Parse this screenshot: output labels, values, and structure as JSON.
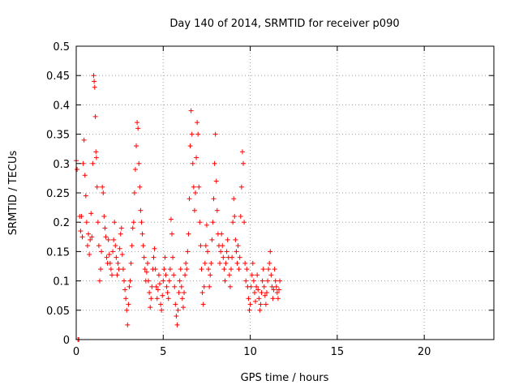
{
  "chart_data": {
    "type": "scatter",
    "title": "Day 140 of 2014, SRMTID for receiver p090",
    "xlabel": "GPS time / hours",
    "ylabel": "SRMTID / TECUs",
    "xlim": [
      0,
      24
    ],
    "ylim": [
      0,
      0.5
    ],
    "grid": true,
    "x_ticks": [
      0,
      5,
      10,
      15,
      20
    ],
    "x_tick_labels": [
      "0",
      "5",
      "10",
      "15",
      "20"
    ],
    "y_ticks": [
      0,
      0.05,
      0.1,
      0.15,
      0.2,
      0.25,
      0.3,
      0.35,
      0.4,
      0.45,
      0.5
    ],
    "y_tick_labels": [
      "0",
      "0.05",
      "0.1",
      "0.15",
      "0.2",
      "0.25",
      "0.3",
      "0.35",
      "0.4",
      "0.45",
      "0.5"
    ],
    "marker": "+",
    "series": [
      {
        "name": "SRMTID",
        "color": "#ff0000",
        "points": [
          [
            0.0,
            0.305
          ],
          [
            0.05,
            0.29
          ],
          [
            0.1,
            0.0
          ],
          [
            0.15,
            0.0
          ],
          [
            0.2,
            0.21
          ],
          [
            0.25,
            0.185
          ],
          [
            0.3,
            0.21
          ],
          [
            0.35,
            0.175
          ],
          [
            0.4,
            0.3
          ],
          [
            0.45,
            0.34
          ],
          [
            0.5,
            0.28
          ],
          [
            0.55,
            0.245
          ],
          [
            0.6,
            0.2
          ],
          [
            0.65,
            0.16
          ],
          [
            0.7,
            0.18
          ],
          [
            0.75,
            0.145
          ],
          [
            0.8,
            0.17
          ],
          [
            0.85,
            0.215
          ],
          [
            0.9,
            0.175
          ],
          [
            0.95,
            0.3
          ],
          [
            1.0,
            0.45
          ],
          [
            1.03,
            0.44
          ],
          [
            1.06,
            0.43
          ],
          [
            1.1,
            0.38
          ],
          [
            1.13,
            0.32
          ],
          [
            1.16,
            0.31
          ],
          [
            1.2,
            0.26
          ],
          [
            1.25,
            0.2
          ],
          [
            1.3,
            0.16
          ],
          [
            1.35,
            0.1
          ],
          [
            1.4,
            0.12
          ],
          [
            1.45,
            0.15
          ],
          [
            1.5,
            0.26
          ],
          [
            1.55,
            0.25
          ],
          [
            1.6,
            0.21
          ],
          [
            1.65,
            0.19
          ],
          [
            1.7,
            0.175
          ],
          [
            1.75,
            0.14
          ],
          [
            1.8,
            0.13
          ],
          [
            1.85,
            0.17
          ],
          [
            1.9,
            0.145
          ],
          [
            1.95,
            0.13
          ],
          [
            2.0,
            0.12
          ],
          [
            2.05,
            0.11
          ],
          [
            2.1,
            0.15
          ],
          [
            2.15,
            0.17
          ],
          [
            2.2,
            0.2
          ],
          [
            2.25,
            0.16
          ],
          [
            2.3,
            0.14
          ],
          [
            2.35,
            0.11
          ],
          [
            2.4,
            0.13
          ],
          [
            2.45,
            0.12
          ],
          [
            2.5,
            0.155
          ],
          [
            2.55,
            0.18
          ],
          [
            2.6,
            0.19
          ],
          [
            2.65,
            0.145
          ],
          [
            2.7,
            0.12
          ],
          [
            2.75,
            0.1
          ],
          [
            2.8,
            0.085
          ],
          [
            2.85,
            0.07
          ],
          [
            2.9,
            0.05
          ],
          [
            2.95,
            0.025
          ],
          [
            3.0,
            0.06
          ],
          [
            3.05,
            0.09
          ],
          [
            3.1,
            0.1
          ],
          [
            3.15,
            0.13
          ],
          [
            3.2,
            0.16
          ],
          [
            3.25,
            0.19
          ],
          [
            3.3,
            0.2
          ],
          [
            3.35,
            0.25
          ],
          [
            3.4,
            0.29
          ],
          [
            3.45,
            0.33
          ],
          [
            3.5,
            0.37
          ],
          [
            3.55,
            0.36
          ],
          [
            3.6,
            0.3
          ],
          [
            3.65,
            0.26
          ],
          [
            3.7,
            0.22
          ],
          [
            3.75,
            0.2
          ],
          [
            3.8,
            0.18
          ],
          [
            3.85,
            0.16
          ],
          [
            3.9,
            0.14
          ],
          [
            3.95,
            0.12
          ],
          [
            4.0,
            0.1
          ],
          [
            4.05,
            0.115
          ],
          [
            4.1,
            0.13
          ],
          [
            4.15,
            0.1
          ],
          [
            4.2,
            0.08
          ],
          [
            4.25,
            0.055
          ],
          [
            4.3,
            0.07
          ],
          [
            4.35,
            0.09
          ],
          [
            4.4,
            0.12
          ],
          [
            4.45,
            0.14
          ],
          [
            4.5,
            0.155
          ],
          [
            4.55,
            0.12
          ],
          [
            4.6,
            0.09
          ],
          [
            4.65,
            0.07
          ],
          [
            4.7,
            0.085
          ],
          [
            4.75,
            0.11
          ],
          [
            4.8,
            0.095
          ],
          [
            4.85,
            0.06
          ],
          [
            4.9,
            0.05
          ],
          [
            4.95,
            0.075
          ],
          [
            5.0,
            0.1
          ],
          [
            5.05,
            0.12
          ],
          [
            5.1,
            0.14
          ],
          [
            5.15,
            0.11
          ],
          [
            5.2,
            0.09
          ],
          [
            5.25,
            0.08
          ],
          [
            5.3,
            0.07
          ],
          [
            5.35,
            0.1
          ],
          [
            5.4,
            0.12
          ],
          [
            5.45,
            0.205
          ],
          [
            5.5,
            0.18
          ],
          [
            5.55,
            0.14
          ],
          [
            5.6,
            0.11
          ],
          [
            5.65,
            0.09
          ],
          [
            5.7,
            0.06
          ],
          [
            5.75,
            0.04
          ],
          [
            5.8,
            0.025
          ],
          [
            5.85,
            0.05
          ],
          [
            5.9,
            0.08
          ],
          [
            5.95,
            0.1
          ],
          [
            6.0,
            0.12
          ],
          [
            6.05,
            0.09
          ],
          [
            6.1,
            0.07
          ],
          [
            6.15,
            0.055
          ],
          [
            6.2,
            0.08
          ],
          [
            6.25,
            0.11
          ],
          [
            6.3,
            0.13
          ],
          [
            6.35,
            0.12
          ],
          [
            6.4,
            0.15
          ],
          [
            6.45,
            0.18
          ],
          [
            6.5,
            0.24
          ],
          [
            6.55,
            0.33
          ],
          [
            6.6,
            0.39
          ],
          [
            6.65,
            0.35
          ],
          [
            6.7,
            0.3
          ],
          [
            6.75,
            0.26
          ],
          [
            6.8,
            0.22
          ],
          [
            6.85,
            0.25
          ],
          [
            6.9,
            0.31
          ],
          [
            6.95,
            0.37
          ],
          [
            7.0,
            0.35
          ],
          [
            7.05,
            0.26
          ],
          [
            7.1,
            0.2
          ],
          [
            7.15,
            0.16
          ],
          [
            7.2,
            0.12
          ],
          [
            7.25,
            0.08
          ],
          [
            7.3,
            0.06
          ],
          [
            7.35,
            0.09
          ],
          [
            7.4,
            0.13
          ],
          [
            7.45,
            0.16
          ],
          [
            7.5,
            0.195
          ],
          [
            7.55,
            0.15
          ],
          [
            7.6,
            0.12
          ],
          [
            7.65,
            0.09
          ],
          [
            7.7,
            0.11
          ],
          [
            7.75,
            0.13
          ],
          [
            7.8,
            0.17
          ],
          [
            7.85,
            0.2
          ],
          [
            7.9,
            0.24
          ],
          [
            7.95,
            0.3
          ],
          [
            8.0,
            0.35
          ],
          [
            8.05,
            0.27
          ],
          [
            8.1,
            0.22
          ],
          [
            8.15,
            0.18
          ],
          [
            8.2,
            0.16
          ],
          [
            8.25,
            0.13
          ],
          [
            8.3,
            0.15
          ],
          [
            8.35,
            0.18
          ],
          [
            8.4,
            0.16
          ],
          [
            8.45,
            0.14
          ],
          [
            8.5,
            0.12
          ],
          [
            8.55,
            0.1
          ],
          [
            8.6,
            0.13
          ],
          [
            8.65,
            0.15
          ],
          [
            8.7,
            0.17
          ],
          [
            8.75,
            0.14
          ],
          [
            8.8,
            0.11
          ],
          [
            8.85,
            0.09
          ],
          [
            8.9,
            0.12
          ],
          [
            8.95,
            0.14
          ],
          [
            9.0,
            0.2
          ],
          [
            9.05,
            0.24
          ],
          [
            9.1,
            0.21
          ],
          [
            9.15,
            0.17
          ],
          [
            9.2,
            0.15
          ],
          [
            9.25,
            0.13
          ],
          [
            9.3,
            0.16
          ],
          [
            9.35,
            0.12
          ],
          [
            9.4,
            0.14
          ],
          [
            9.45,
            0.21
          ],
          [
            9.5,
            0.26
          ],
          [
            9.55,
            0.32
          ],
          [
            9.6,
            0.3
          ],
          [
            9.65,
            0.2
          ],
          [
            9.7,
            0.13
          ],
          [
            9.75,
            0.1
          ],
          [
            9.8,
            0.12
          ],
          [
            9.85,
            0.09
          ],
          [
            9.9,
            0.07
          ],
          [
            9.95,
            0.05
          ],
          [
            10.0,
            0.06
          ],
          [
            10.05,
            0.09
          ],
          [
            10.1,
            0.11
          ],
          [
            10.15,
            0.13
          ],
          [
            10.2,
            0.1
          ],
          [
            10.25,
            0.08
          ],
          [
            10.3,
            0.065
          ],
          [
            10.35,
            0.09
          ],
          [
            10.4,
            0.11
          ],
          [
            10.45,
            0.085
          ],
          [
            10.5,
            0.07
          ],
          [
            10.55,
            0.05
          ],
          [
            10.6,
            0.06
          ],
          [
            10.65,
            0.08
          ],
          [
            10.7,
            0.1
          ],
          [
            10.75,
            0.12
          ],
          [
            10.8,
            0.09
          ],
          [
            10.85,
            0.075
          ],
          [
            10.9,
            0.06
          ],
          [
            10.95,
            0.08
          ],
          [
            11.0,
            0.1
          ],
          [
            11.05,
            0.12
          ],
          [
            11.1,
            0.13
          ],
          [
            11.15,
            0.15
          ],
          [
            11.2,
            0.11
          ],
          [
            11.25,
            0.09
          ],
          [
            11.3,
            0.07
          ],
          [
            11.35,
            0.085
          ],
          [
            11.4,
            0.12
          ],
          [
            11.45,
            0.1
          ],
          [
            11.5,
            0.09
          ],
          [
            11.55,
            0.08
          ],
          [
            11.6,
            0.07
          ],
          [
            11.65,
            0.085
          ],
          [
            11.7,
            0.1
          ]
        ]
      }
    ]
  }
}
